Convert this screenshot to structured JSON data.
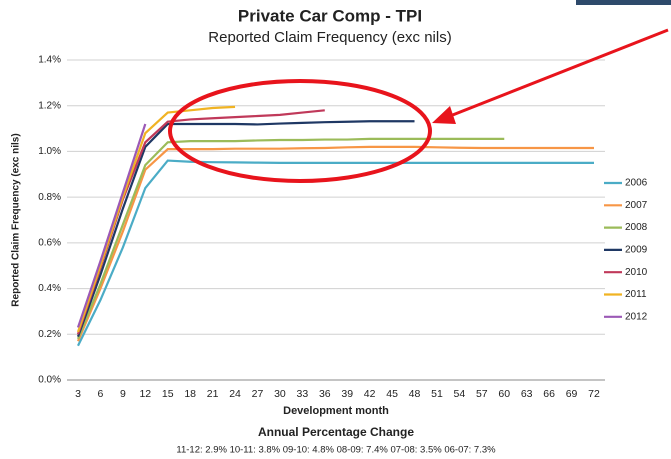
{
  "chart_data": {
    "type": "line",
    "title": "Private Car Comp - TPI",
    "subtitle": "Reported Claim Frequency (exc nils)",
    "y_label": "Reported Claim Frequency (exc nils)",
    "x_label": "Development month",
    "annotations": [
      "Annual Percentage Change",
      "11-12: 2.9%  10-11: 3.8%  09-10: 4.8%  08-09: 7.4%  07-08: 3.5%  06-07: 7.3%"
    ],
    "categories": [
      "3",
      "6",
      "9",
      "12",
      "15",
      "18",
      "21",
      "24",
      "27",
      "30",
      "33",
      "36",
      "39",
      "42",
      "45",
      "48",
      "51",
      "54",
      "57",
      "60",
      "63",
      "66",
      "69",
      "72"
    ],
    "ylim": [
      0,
      1.4
    ],
    "yticks": [
      {
        "value": 0,
        "label": "0.0%"
      },
      {
        "value": 0.2,
        "label": "0.2%"
      },
      {
        "value": 0.4,
        "label": "0.4%"
      },
      {
        "value": 0.6,
        "label": "0.6%"
      },
      {
        "value": 0.8,
        "label": "0.8%"
      },
      {
        "value": 1.0,
        "label": "1.0%"
      },
      {
        "value": 1.2,
        "label": "1.2%"
      },
      {
        "value": 1.4,
        "label": "1.4%"
      }
    ],
    "grid": true,
    "legend": "right",
    "series": [
      {
        "name": "2006",
        "color": "#4bacc6",
        "values": [
          0.15,
          0.35,
          0.58,
          0.84,
          0.96,
          0.955,
          0.953,
          0.952,
          0.951,
          0.95,
          0.95,
          0.95,
          0.95,
          0.95,
          0.95,
          0.95,
          0.95,
          0.95,
          0.95,
          0.95,
          0.95,
          0.95,
          0.95,
          0.95
        ]
      },
      {
        "name": "2007",
        "color": "#f79646",
        "values": [
          0.17,
          0.4,
          0.65,
          0.92,
          1.01,
          1.01,
          1.01,
          1.012,
          1.012,
          1.012,
          1.014,
          1.015,
          1.018,
          1.02,
          1.02,
          1.02,
          1.018,
          1.016,
          1.015,
          1.015,
          1.015,
          1.015,
          1.015,
          1.015
        ]
      },
      {
        "name": "2008",
        "color": "#9bbb59",
        "values": [
          0.18,
          0.42,
          0.68,
          0.94,
          1.04,
          1.045,
          1.045,
          1.045,
          1.048,
          1.05,
          1.05,
          1.052,
          1.052,
          1.055,
          1.055,
          1.055,
          1.055,
          1.055,
          1.055,
          1.055,
          null,
          null,
          null,
          null
        ]
      },
      {
        "name": "2009",
        "color": "#1f3864",
        "values": [
          0.19,
          0.46,
          0.75,
          1.02,
          1.12,
          1.12,
          1.12,
          1.12,
          1.118,
          1.122,
          1.125,
          1.128,
          1.13,
          1.132,
          1.132,
          1.132,
          null,
          null,
          null,
          null,
          null,
          null,
          null,
          null
        ]
      },
      {
        "name": "2010",
        "color": "#c0395a",
        "values": [
          0.2,
          0.49,
          0.79,
          1.04,
          1.13,
          1.14,
          1.145,
          1.15,
          1.155,
          1.16,
          1.17,
          1.18,
          null,
          null,
          null,
          null,
          null,
          null,
          null,
          null,
          null,
          null,
          null,
          null
        ]
      },
      {
        "name": "2011",
        "color": "#f0b323",
        "values": [
          0.21,
          0.5,
          0.8,
          1.08,
          1.17,
          1.18,
          1.19,
          1.195,
          null,
          null,
          null,
          null,
          null,
          null,
          null,
          null,
          null,
          null,
          null,
          null,
          null,
          null,
          null,
          null
        ]
      },
      {
        "name": "2012",
        "color": "#9b59b6",
        "values": [
          0.23,
          0.52,
          0.82,
          1.12,
          null,
          null,
          null,
          null,
          null,
          null,
          null,
          null,
          null,
          null,
          null,
          null,
          null,
          null,
          null,
          null,
          null,
          null,
          null,
          null
        ]
      }
    ]
  }
}
